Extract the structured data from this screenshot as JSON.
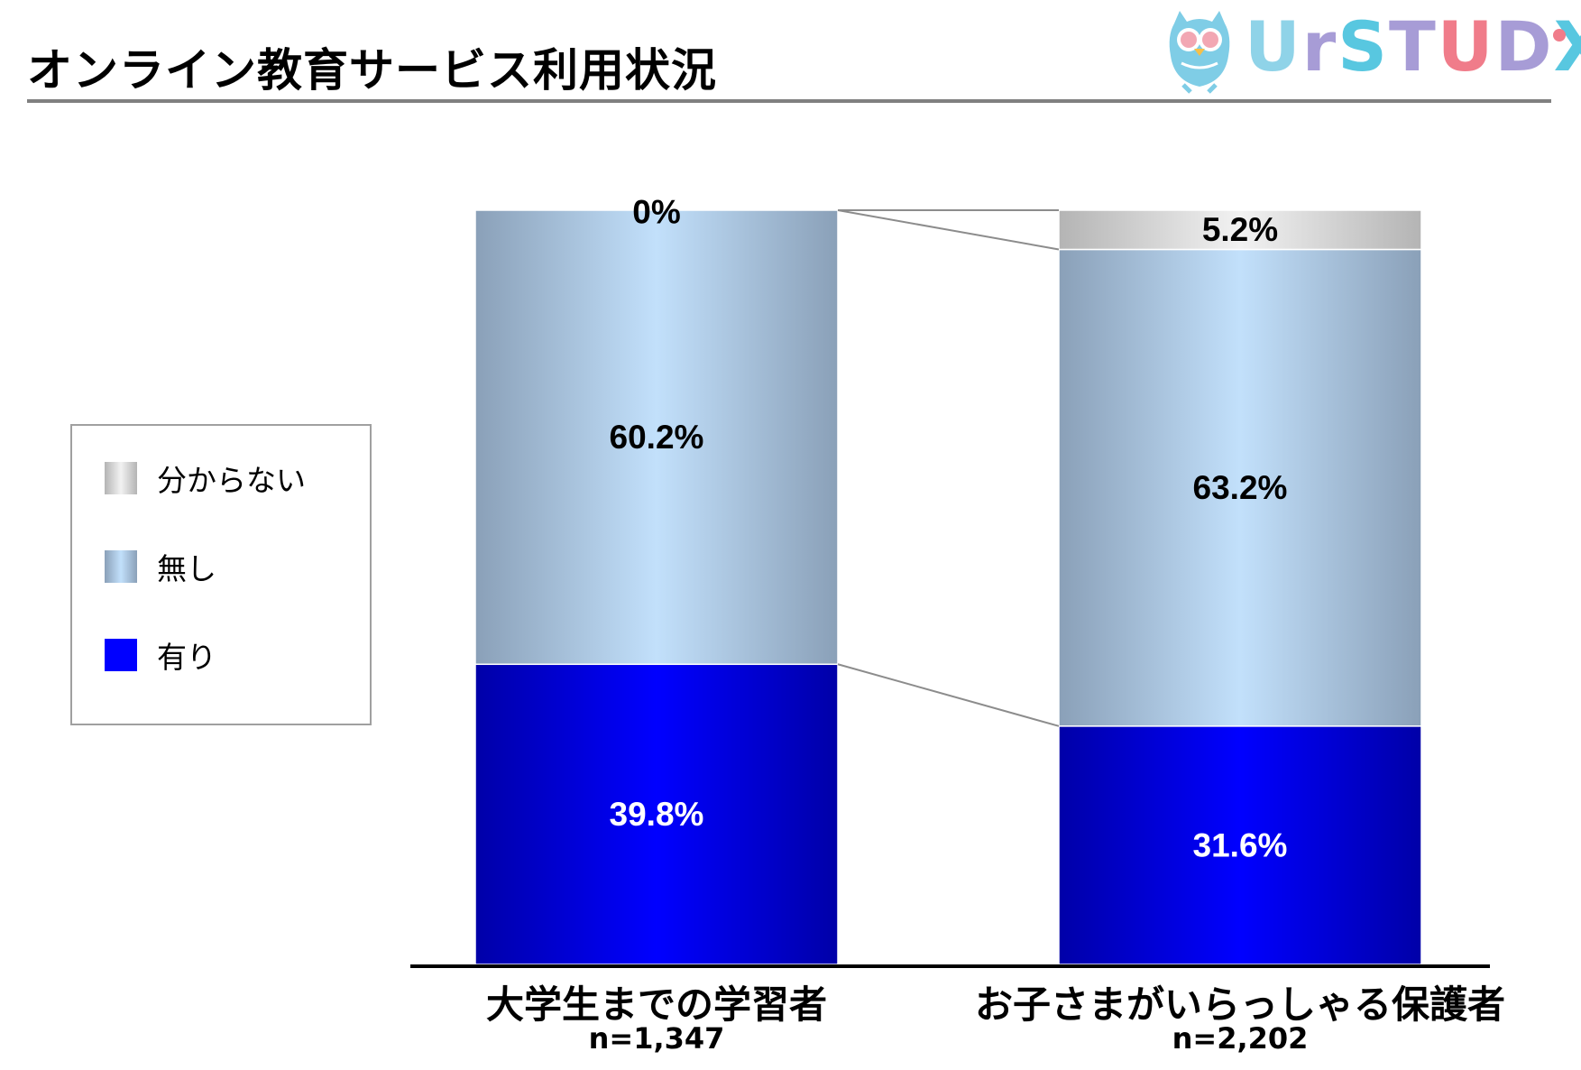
{
  "header": {
    "title": "オンライン教育サービス利用状況",
    "logo": {
      "text_u": "U",
      "text_r": "r",
      "text_s": "S",
      "text_t": "T",
      "text_u2": "U",
      "text_d": "D",
      "text_x": "X"
    }
  },
  "colors": {
    "yes": "#0000ff",
    "no": "#c0defa",
    "unknown": "#e6e6e6",
    "logo_u": "#8fd3e8",
    "logo_r": "#a79cd6",
    "logo_s": "#58c7e0",
    "logo_t": "#a79cd6",
    "logo_u2": "#f07c8a",
    "logo_d": "#a79cd6",
    "logo_x": "#58c7e0"
  },
  "chart_data": {
    "type": "bar",
    "stacked": true,
    "percent": true,
    "title": "",
    "categories": [
      "大学生までの学習者",
      "お子さまがいらっしゃる保護者"
    ],
    "sample_sizes": [
      "n=1,347",
      "n=2,202"
    ],
    "series": [
      {
        "name": "有り",
        "values": [
          39.8,
          31.6
        ],
        "labels": [
          "39.8%",
          "31.6%"
        ]
      },
      {
        "name": "無し",
        "values": [
          60.2,
          63.2
        ],
        "labels": [
          "60.2%",
          "63.2%"
        ]
      },
      {
        "name": "分からない",
        "values": [
          0,
          5.2
        ],
        "labels": [
          "0%",
          "5.2%"
        ]
      }
    ],
    "legend": [
      "分からない",
      "無し",
      "有り"
    ],
    "legend_position": "left",
    "ylim": [
      0,
      100
    ],
    "grid": false
  }
}
